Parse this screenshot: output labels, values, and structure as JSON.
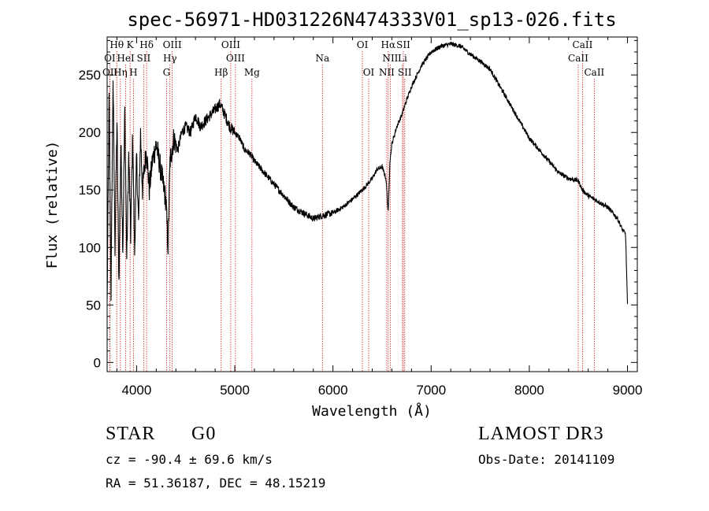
{
  "chart_data": {
    "type": "line",
    "title": "spec-56971-HD031226N474333V01_sp13-026.fits",
    "xlabel": "Wavelength (Å)",
    "ylabel": "Flux (relative)",
    "xlim": [
      3700,
      9100
    ],
    "ylim": [
      -8,
      283
    ],
    "xticks": [
      4000,
      5000,
      6000,
      7000,
      8000,
      9000
    ],
    "yticks": [
      0,
      50,
      100,
      150,
      200,
      250
    ],
    "series": [
      {
        "name": "spectrum",
        "x": [
          3700,
          3720,
          3740,
          3760,
          3780,
          3800,
          3820,
          3840,
          3860,
          3880,
          3900,
          3920,
          3940,
          3960,
          3980,
          4000,
          4020,
          4040,
          4060,
          4080,
          4100,
          4130,
          4160,
          4200,
          4250,
          4300,
          4320,
          4340,
          4380,
          4420,
          4460,
          4500,
          4550,
          4600,
          4650,
          4700,
          4750,
          4800,
          4850,
          4900,
          4950,
          5000,
          5050,
          5100,
          5150,
          5200,
          5300,
          5400,
          5500,
          5600,
          5700,
          5800,
          5900,
          6000,
          6100,
          6200,
          6300,
          6350,
          6400,
          6450,
          6500,
          6540,
          6563,
          6580,
          6600,
          6650,
          6700,
          6750,
          6800,
          6900,
          7000,
          7100,
          7200,
          7300,
          7400,
          7500,
          7600,
          7700,
          7800,
          7900,
          8000,
          8100,
          8200,
          8300,
          8400,
          8500,
          8540,
          8600,
          8700,
          8800,
          8900,
          8950,
          8980,
          9000
        ],
        "values": [
          50,
          230,
          60,
          250,
          100,
          210,
          70,
          190,
          100,
          220,
          90,
          180,
          110,
          200,
          95,
          180,
          120,
          200,
          150,
          170,
          185,
          150,
          175,
          190,
          165,
          140,
          100,
          175,
          195,
          185,
          200,
          205,
          200,
          215,
          205,
          210,
          215,
          220,
          225,
          215,
          205,
          200,
          195,
          185,
          182,
          175,
          165,
          155,
          145,
          135,
          130,
          125,
          128,
          130,
          135,
          142,
          150,
          155,
          160,
          168,
          170,
          160,
          130,
          175,
          190,
          205,
          215,
          228,
          240,
          258,
          270,
          275,
          277,
          275,
          268,
          262,
          255,
          240,
          225,
          210,
          195,
          185,
          175,
          165,
          160,
          158,
          150,
          145,
          140,
          135,
          125,
          115,
          112,
          50
        ]
      }
    ],
    "spectral_lines": [
      {
        "label": "Hθ",
        "wavelength": 3798,
        "row": 1
      },
      {
        "label": "K",
        "wavelength": 3934,
        "row": 1
      },
      {
        "label": "Hδ",
        "wavelength": 4102,
        "row": 1
      },
      {
        "label": "OIII",
        "wavelength": 4363,
        "row": 1
      },
      {
        "label": "OIII",
        "wavelength": 4959,
        "row": 1
      },
      {
        "label": "OI",
        "wavelength": 6300,
        "row": 1
      },
      {
        "label": "Hα",
        "wavelength": 6563,
        "row": 1
      },
      {
        "label": "SII",
        "wavelength": 6717,
        "row": 1
      },
      {
        "label": "CaII",
        "wavelength": 8542,
        "row": 1
      },
      {
        "label": "OI",
        "wavelength": 3727,
        "row": 2
      },
      {
        "label": "HeI",
        "wavelength": 3889,
        "row": 2
      },
      {
        "label": "SII",
        "wavelength": 4072,
        "row": 2
      },
      {
        "label": "Hγ",
        "wavelength": 4340,
        "row": 2
      },
      {
        "label": "OIII",
        "wavelength": 5007,
        "row": 2
      },
      {
        "label": "Na",
        "wavelength": 5893,
        "row": 2
      },
      {
        "label": "NII",
        "wavelength": 6584,
        "row": 2
      },
      {
        "label": "Li",
        "wavelength": 6708,
        "row": 2
      },
      {
        "label": "CaII",
        "wavelength": 8498,
        "row": 2
      },
      {
        "label": "OII",
        "wavelength": 3729,
        "row": 3
      },
      {
        "label": "Hη",
        "wavelength": 3835,
        "row": 3
      },
      {
        "label": "H",
        "wavelength": 3968,
        "row": 3
      },
      {
        "label": "G",
        "wavelength": 4305,
        "row": 3
      },
      {
        "label": "Hβ",
        "wavelength": 4861,
        "row": 3
      },
      {
        "label": "Mg",
        "wavelength": 5175,
        "row": 3
      },
      {
        "label": "OI",
        "wavelength": 6364,
        "row": 3
      },
      {
        "label": "NII",
        "wavelength": 6548,
        "row": 3
      },
      {
        "label": "SII",
        "wavelength": 6731,
        "row": 3
      },
      {
        "label": "CaII",
        "wavelength": 8662,
        "row": 3
      }
    ],
    "line_color": "#000000",
    "marker_color": "#cc2222"
  },
  "info": {
    "class_label": "STAR",
    "subclass": "G0",
    "survey": "LAMOST DR3",
    "redshift": "cz = -90.4 ± 69.6 km/s",
    "obs_date": "Obs-Date: 20141109",
    "coords": "RA =  51.36187, DEC =  48.15219"
  }
}
